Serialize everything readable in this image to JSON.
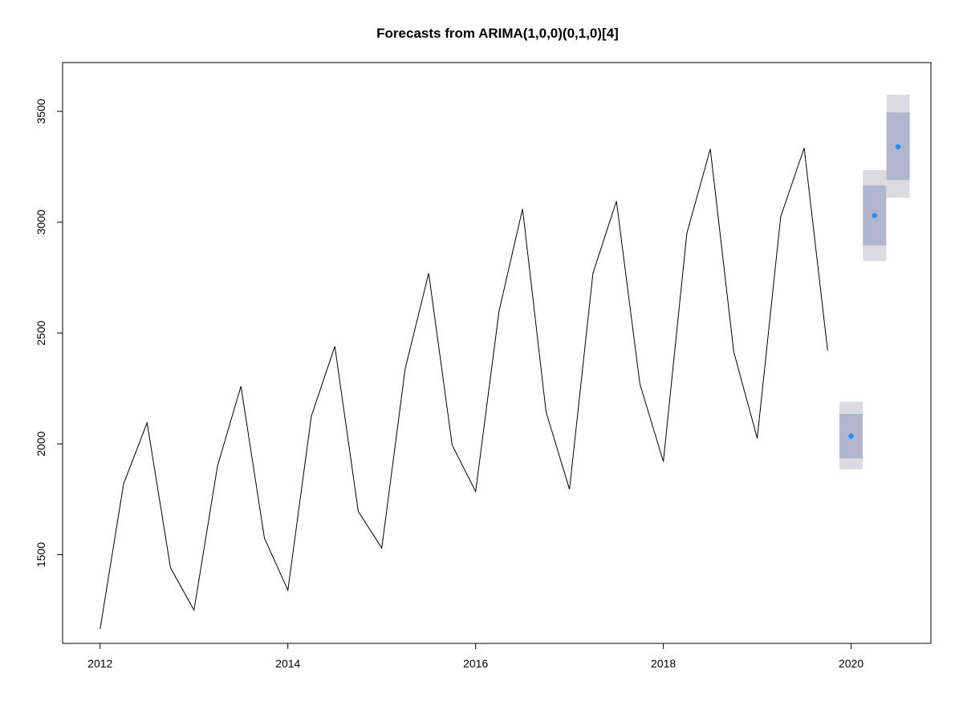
{
  "chart_data": {
    "type": "line",
    "title": "Forecasts from ARIMA(1,0,0)(0,1,0)[4]",
    "xlabel": "",
    "ylabel": "",
    "xlim": [
      2011.6,
      2020.85
    ],
    "ylim": [
      1100,
      3720
    ],
    "x_ticks": [
      2012,
      2014,
      2016,
      2018,
      2020
    ],
    "y_ticks": [
      1500,
      2000,
      2500,
      3000,
      3500
    ],
    "grid": false,
    "series": [
      {
        "role": "observed",
        "color": "#000000",
        "x": [
          2012.0,
          2012.25,
          2012.5,
          2012.75,
          2013.0,
          2013.25,
          2013.5,
          2013.75,
          2014.0,
          2014.25,
          2014.5,
          2014.75,
          2015.0,
          2015.25,
          2015.5,
          2015.75,
          2016.0,
          2016.25,
          2016.5,
          2016.75,
          2017.0,
          2017.25,
          2017.5,
          2017.75,
          2018.0,
          2018.25,
          2018.5,
          2018.75,
          2019.0,
          2019.25,
          2019.5,
          2019.75
        ],
        "y": [
          1165,
          1820,
          2095,
          1440,
          1250,
          1900,
          2260,
          1575,
          1340,
          2125,
          2440,
          1695,
          1530,
          2340,
          2770,
          1995,
          1785,
          2600,
          3060,
          2145,
          1795,
          2770,
          3095,
          2270,
          1920,
          2950,
          3330,
          2415,
          2025,
          3025,
          3335,
          2420
        ]
      }
    ],
    "forecast": {
      "point_color": "#1e90ff",
      "inner_band_color": "#b1b5ce",
      "outer_band_color": "#dbdbdf",
      "x": [
        2020.0,
        2020.25,
        2020.5
      ],
      "mean": [
        2035,
        3030,
        3340
      ],
      "lo80": [
        1935,
        2895,
        3190
      ],
      "hi80": [
        2135,
        3165,
        3495
      ],
      "lo95": [
        1885,
        2825,
        3110
      ],
      "hi95": [
        2190,
        3235,
        3575
      ]
    }
  }
}
